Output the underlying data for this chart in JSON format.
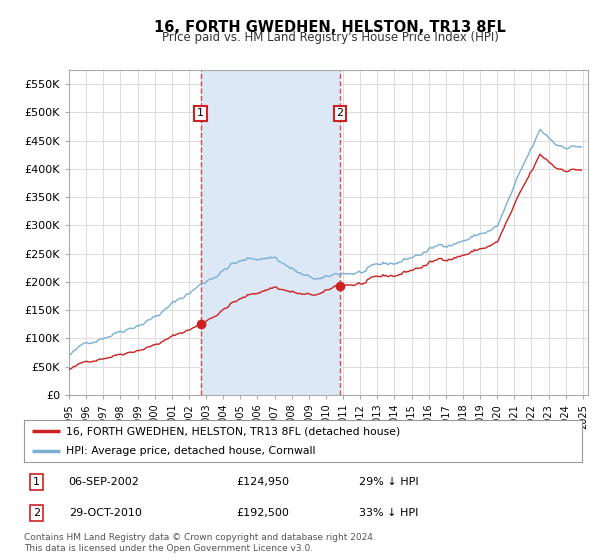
{
  "title": "16, FORTH GWEDHEN, HELSTON, TR13 8FL",
  "subtitle": "Price paid vs. HM Land Registry's House Price Index (HPI)",
  "ylim": [
    0,
    575000
  ],
  "yticks": [
    0,
    50000,
    100000,
    150000,
    200000,
    250000,
    300000,
    350000,
    400000,
    450000,
    500000,
    550000
  ],
  "ytick_labels": [
    "£0",
    "£50K",
    "£100K",
    "£150K",
    "£200K",
    "£250K",
    "£300K",
    "£350K",
    "£400K",
    "£450K",
    "£500K",
    "£550K"
  ],
  "plot_bg": "#ffffff",
  "grid_color": "#dddddd",
  "red_line_color": "#cc2222",
  "blue_line_color": "#7ab0d4",
  "shade_color": "#dce8f5",
  "purchase1_year": 2002.68,
  "purchase1_price": 124950,
  "purchase1_label": "1",
  "purchase2_year": 2010.83,
  "purchase2_price": 192500,
  "purchase2_label": "2",
  "legend_line1": "16, FORTH GWEDHEN, HELSTON, TR13 8FL (detached house)",
  "legend_line2": "HPI: Average price, detached house, Cornwall",
  "footer": "Contains HM Land Registry data © Crown copyright and database right 2024.\nThis data is licensed under the Open Government Licence v3.0.",
  "table_rows": [
    {
      "num": "1",
      "date": "06-SEP-2002",
      "price": "£124,950",
      "hpi": "29% ↓ HPI"
    },
    {
      "num": "2",
      "date": "29-OCT-2010",
      "price": "£192,500",
      "hpi": "33% ↓ HPI"
    }
  ]
}
